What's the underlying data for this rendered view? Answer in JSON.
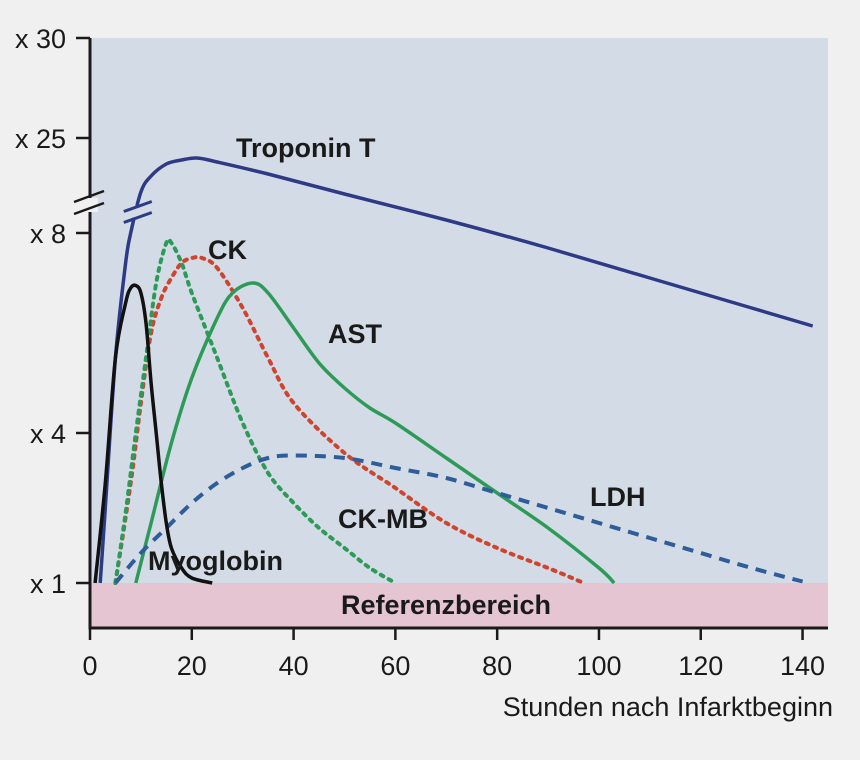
{
  "colors": {
    "page_background": "#f0f0f0",
    "plot_background": "#d3dce6",
    "reference_band": "#e6c5d3",
    "axis": "#1a1a1a"
  },
  "chart_data": {
    "type": "line",
    "title": "",
    "xlabel": "Stunden nach Infarktbeginn",
    "ylabel": "",
    "xlim": [
      0,
      145
    ],
    "x_ticks": [
      0,
      20,
      40,
      60,
      80,
      100,
      120,
      140
    ],
    "y_scale": "broken axis: multiples of reference upper limit, lower segment x1-x8, upper segment x25-x30",
    "y_ticks": [
      "x 1",
      "x 4",
      "x 8",
      "x 25",
      "x 30"
    ],
    "reference_band": {
      "label": "Referenzbereich",
      "upper": 1
    },
    "grid": false,
    "legend": "none (series labelled directly on the curves)",
    "series": [
      {
        "name": "Troponin T",
        "color": "#2e3a86",
        "style": "solid",
        "points": [
          [
            2,
            1
          ],
          [
            3,
            2.5
          ],
          [
            5,
            5.5
          ],
          [
            7,
            7.4
          ],
          [
            8,
            8
          ],
          [
            10,
            22.3
          ],
          [
            12,
            23.1
          ],
          [
            15,
            23.7
          ],
          [
            18,
            23.9
          ],
          [
            21,
            24
          ],
          [
            25,
            23.8
          ],
          [
            35,
            23.2
          ],
          [
            50,
            22.2
          ],
          [
            70,
            20.9
          ],
          [
            90,
            19.5
          ],
          [
            110,
            18
          ],
          [
            130,
            16.5
          ],
          [
            142,
            15.6
          ]
        ]
      },
      {
        "name": "CK",
        "color": "#d0442d",
        "style": "dotted",
        "points": [
          [
            5,
            1
          ],
          [
            8,
            3
          ],
          [
            10,
            4.6
          ],
          [
            12,
            6
          ],
          [
            14,
            6.7
          ],
          [
            16,
            7.1
          ],
          [
            18,
            7.4
          ],
          [
            20,
            7.5
          ],
          [
            22,
            7.5
          ],
          [
            25,
            7.3
          ],
          [
            30,
            6.5
          ],
          [
            35,
            5.5
          ],
          [
            40,
            4.6
          ],
          [
            50,
            3.6
          ],
          [
            60,
            2.9
          ],
          [
            70,
            2.2
          ],
          [
            80,
            1.7
          ],
          [
            90,
            1.3
          ],
          [
            97,
            1
          ]
        ]
      },
      {
        "name": "CK-MB",
        "color": "#2e9a57",
        "style": "dotted",
        "points": [
          [
            5,
            1
          ],
          [
            7,
            2.4
          ],
          [
            9,
            4
          ],
          [
            11,
            5.5
          ],
          [
            13,
            7
          ],
          [
            15,
            7.8
          ],
          [
            16,
            7.8
          ],
          [
            18,
            7.4
          ],
          [
            20,
            6.8
          ],
          [
            25,
            5.5
          ],
          [
            30,
            4.2
          ],
          [
            35,
            3.2
          ],
          [
            40,
            2.6
          ],
          [
            45,
            2.1
          ],
          [
            50,
            1.7
          ],
          [
            55,
            1.3
          ],
          [
            60,
            1
          ]
        ]
      },
      {
        "name": "AST",
        "color": "#2e9a57",
        "style": "solid",
        "points": [
          [
            9,
            1
          ],
          [
            12,
            2.2
          ],
          [
            16,
            3.8
          ],
          [
            20,
            5.1
          ],
          [
            25,
            6.3
          ],
          [
            28,
            6.8
          ],
          [
            32,
            7
          ],
          [
            35,
            6.8
          ],
          [
            40,
            6.1
          ],
          [
            45,
            5.4
          ],
          [
            50,
            4.9
          ],
          [
            55,
            4.5
          ],
          [
            60,
            4.2
          ],
          [
            70,
            3.5
          ],
          [
            80,
            2.8
          ],
          [
            90,
            2.1
          ],
          [
            100,
            1.3
          ],
          [
            103,
            1
          ]
        ]
      },
      {
        "name": "LDH",
        "color": "#2e5d9a",
        "style": "dashed",
        "points": [
          [
            5,
            1
          ],
          [
            10,
            1.6
          ],
          [
            15,
            2.1
          ],
          [
            20,
            2.6
          ],
          [
            25,
            3
          ],
          [
            30,
            3.3
          ],
          [
            35,
            3.5
          ],
          [
            40,
            3.55
          ],
          [
            50,
            3.5
          ],
          [
            60,
            3.3
          ],
          [
            70,
            3.1
          ],
          [
            80,
            2.8
          ],
          [
            90,
            2.5
          ],
          [
            100,
            2.2
          ],
          [
            110,
            1.9
          ],
          [
            120,
            1.6
          ],
          [
            130,
            1.3
          ],
          [
            140,
            1.03
          ]
        ]
      },
      {
        "name": "Myoglobin",
        "color": "#111111",
        "style": "solid",
        "points": [
          [
            1,
            1
          ],
          [
            3,
            3
          ],
          [
            5,
            5.5
          ],
          [
            7,
            6.6
          ],
          [
            8,
            6.9
          ],
          [
            9,
            6.95
          ],
          [
            10,
            6.8
          ],
          [
            11,
            6.2
          ],
          [
            12,
            5
          ],
          [
            13,
            4
          ],
          [
            14,
            3
          ],
          [
            15,
            2.2
          ],
          [
            16,
            1.7
          ],
          [
            18,
            1.3
          ],
          [
            20,
            1.1
          ],
          [
            24,
            1
          ]
        ]
      }
    ],
    "labels": {
      "Troponin T": "Troponin T",
      "CK": "CK",
      "CK-MB": "CK-MB",
      "AST": "AST",
      "LDH": "LDH",
      "Myoglobin": "Myoglobin"
    }
  }
}
